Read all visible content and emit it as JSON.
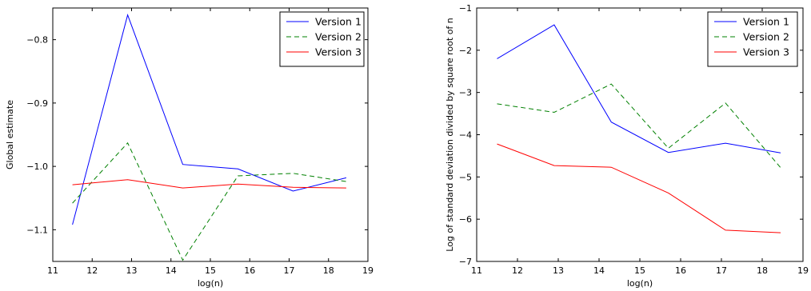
{
  "chart_data": [
    {
      "type": "line",
      "xlabel": "log(n)",
      "ylabel": "Global estimate",
      "xlim": [
        11,
        19
      ],
      "ylim": [
        -1.15,
        -0.75
      ],
      "xticks": [
        "11",
        "12",
        "13",
        "14",
        "15",
        "16",
        "17",
        "18",
        "19"
      ],
      "yticks": [
        "−1.1",
        "−1.0",
        "−0.9",
        "−0.8"
      ],
      "ytick_values": [
        -1.1,
        -1.0,
        -0.9,
        -0.8
      ],
      "grid": false,
      "legend": "top-right",
      "x": [
        11.5,
        12.9,
        14.3,
        15.7,
        17.1,
        18.45
      ],
      "series": [
        {
          "name": "Version 1",
          "color": "#0000ff",
          "dash": "solid",
          "values": [
            -1.092,
            -0.761,
            -0.997,
            -1.004,
            -1.039,
            -1.018
          ]
        },
        {
          "name": "Version 2",
          "color": "#008000",
          "dash": "dashed",
          "values": [
            -1.058,
            -0.963,
            -1.148,
            -1.015,
            -1.011,
            -1.024
          ]
        },
        {
          "name": "Version 3",
          "color": "#ff0000",
          "dash": "solid",
          "values": [
            -1.029,
            -1.021,
            -1.034,
            -1.028,
            -1.033,
            -1.034
          ]
        }
      ]
    },
    {
      "type": "line",
      "xlabel": "log(n)",
      "ylabel": "Log of standard deviation divided by square root of n",
      "xlim": [
        11,
        19
      ],
      "ylim": [
        -7,
        -1
      ],
      "xticks": [
        "11",
        "12",
        "13",
        "14",
        "15",
        "16",
        "17",
        "18",
        "19"
      ],
      "yticks": [
        "−7",
        "−6",
        "−5",
        "−4",
        "−3",
        "−2",
        "−1"
      ],
      "ytick_values": [
        -7,
        -6,
        -5,
        -4,
        -3,
        -2,
        -1
      ],
      "grid": false,
      "legend": "top-right",
      "x": [
        11.5,
        12.9,
        14.3,
        15.7,
        17.1,
        18.45
      ],
      "series": [
        {
          "name": "Version 1",
          "color": "#0000ff",
          "dash": "solid",
          "values": [
            -2.2,
            -1.4,
            -3.7,
            -4.42,
            -4.2,
            -4.43
          ]
        },
        {
          "name": "Version 2",
          "color": "#008000",
          "dash": "dashed",
          "values": [
            -3.27,
            -3.47,
            -2.8,
            -4.32,
            -3.25,
            -4.78
          ]
        },
        {
          "name": "Version 3",
          "color": "#ff0000",
          "dash": "solid",
          "values": [
            -4.22,
            -4.73,
            -4.77,
            -5.38,
            -6.26,
            -6.32
          ]
        }
      ]
    }
  ]
}
